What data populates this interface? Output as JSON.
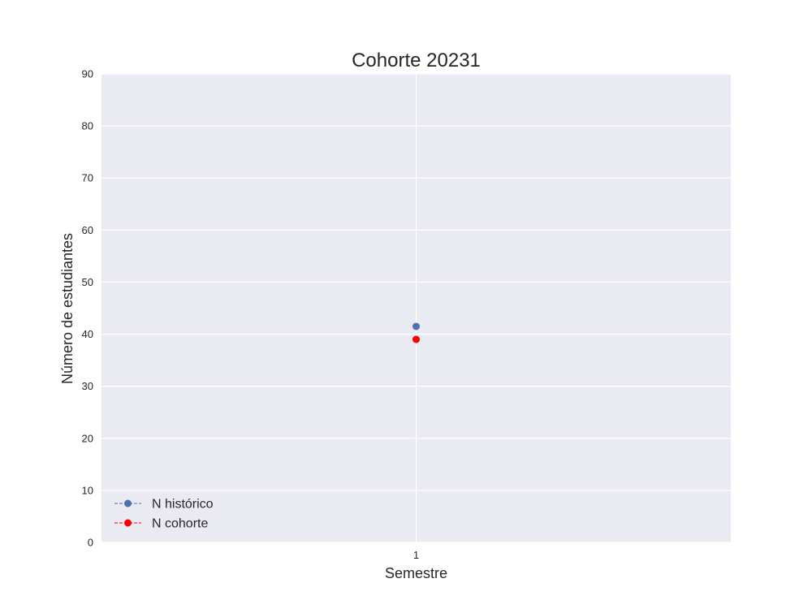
{
  "chart_data": {
    "type": "line",
    "title": "Cohorte 20231",
    "xlabel": "Semestre",
    "ylabel": "Número de estudiantes",
    "categories": [
      "1"
    ],
    "ylim": [
      0,
      90
    ],
    "yticks": [
      "0",
      "10",
      "20",
      "30",
      "40",
      "50",
      "60",
      "70",
      "80",
      "90"
    ],
    "grid": true,
    "legend_position": "lower-left",
    "series": [
      {
        "name": "N histórico",
        "values": [
          41.5
        ],
        "color": "#4c72b0",
        "line_style": "dashed",
        "marker": "circle"
      },
      {
        "name": "N cohorte",
        "values": [
          39
        ],
        "color": "#ff0000",
        "line_style": "dashed",
        "marker": "circle"
      }
    ],
    "plot_background": "#eaeaf2",
    "grid_color": "#ffffff"
  }
}
